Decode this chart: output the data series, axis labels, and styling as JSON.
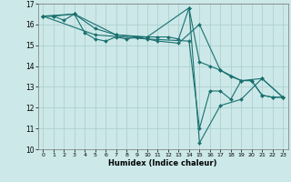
{
  "xlabel": "Humidex (Indice chaleur)",
  "ylabel": "",
  "xlim": [
    -0.5,
    23.5
  ],
  "ylim": [
    10,
    17
  ],
  "xticks": [
    0,
    1,
    2,
    3,
    4,
    5,
    6,
    7,
    8,
    9,
    10,
    11,
    12,
    13,
    14,
    15,
    16,
    17,
    18,
    19,
    20,
    21,
    22,
    23
  ],
  "yticks": [
    10,
    11,
    12,
    13,
    14,
    15,
    16,
    17
  ],
  "background_color": "#cce8e8",
  "grid_color": "#aacccc",
  "line_color": "#1a7070",
  "lines": [
    {
      "x": [
        0,
        1,
        2,
        3,
        4,
        5,
        6,
        7,
        8,
        9,
        10,
        11,
        12,
        13,
        14,
        15,
        16,
        17,
        18,
        19,
        20,
        21,
        22,
        23
      ],
      "y": [
        16.4,
        16.4,
        16.2,
        16.5,
        15.6,
        15.3,
        15.2,
        15.4,
        15.3,
        15.4,
        15.4,
        15.4,
        15.4,
        15.3,
        16.8,
        14.2,
        14.0,
        13.8,
        13.5,
        13.3,
        13.3,
        12.6,
        12.5,
        12.5
      ]
    },
    {
      "x": [
        0,
        1,
        3,
        5,
        7,
        9,
        11,
        13,
        15,
        17,
        19,
        21,
        23
      ],
      "y": [
        16.4,
        16.4,
        16.5,
        15.8,
        15.5,
        15.4,
        15.2,
        15.1,
        16.0,
        13.8,
        13.3,
        13.4,
        12.5
      ]
    },
    {
      "x": [
        0,
        3,
        7,
        10,
        14,
        15,
        17,
        19,
        21,
        23
      ],
      "y": [
        16.4,
        16.5,
        15.5,
        15.4,
        16.8,
        10.3,
        12.1,
        12.4,
        13.4,
        12.5
      ]
    },
    {
      "x": [
        0,
        5,
        10,
        14,
        15,
        16,
        17,
        18,
        19,
        20,
        21,
        22,
        23
      ],
      "y": [
        16.4,
        15.5,
        15.3,
        15.2,
        11.0,
        12.8,
        12.8,
        12.4,
        13.3,
        13.3,
        12.6,
        12.5,
        12.5
      ]
    }
  ]
}
